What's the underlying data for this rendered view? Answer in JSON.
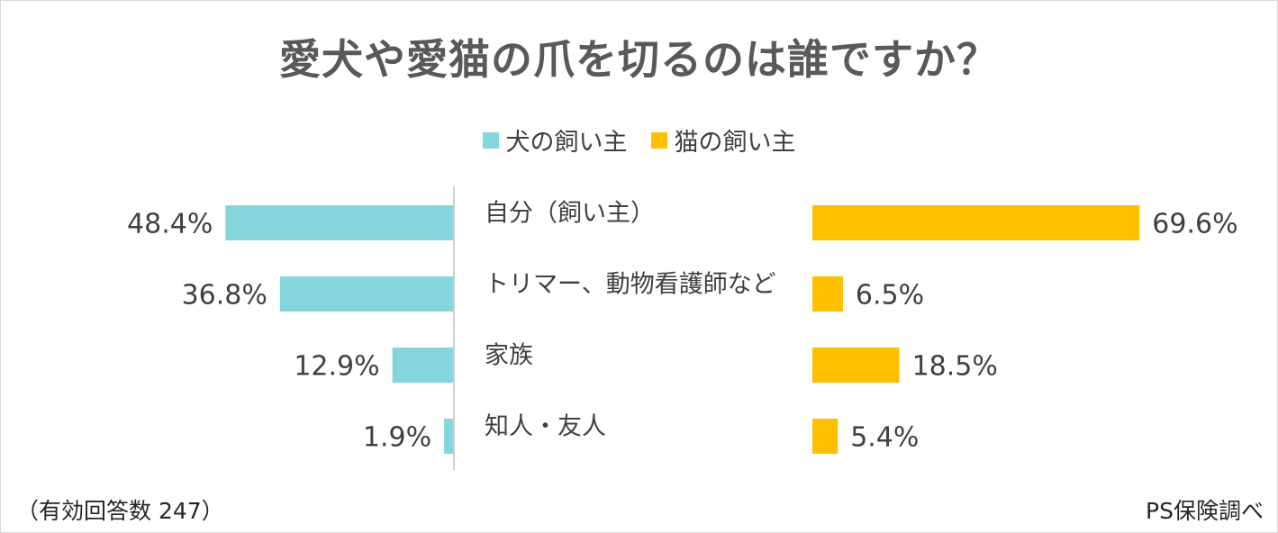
{
  "chart_data": {
    "type": "bar",
    "title": "愛犬や愛猫の爪を切るのは誰ですか？",
    "categories": [
      "自分（飼い主）",
      "トリマー、動物看護師など",
      "家族",
      "知人・友人"
    ],
    "series": [
      {
        "name": "犬の飼い主",
        "values": [
          48.4,
          36.8,
          12.9,
          1.9
        ],
        "color": "#84D6DC",
        "direction": "left"
      },
      {
        "name": "猫の飼い主",
        "values": [
          69.6,
          6.5,
          18.5,
          5.4
        ],
        "color": "#FFC000",
        "direction": "right"
      }
    ],
    "value_labels": {
      "dog": [
        "48.4%",
        "36.8%",
        "12.9%",
        "1.9%"
      ],
      "cat": [
        "69.6%",
        "6.5%",
        "18.5%",
        "5.4%"
      ]
    },
    "unit": "%",
    "legend_position": "top-center",
    "grid": false
  },
  "footer": {
    "note": "（有効回答数 247）",
    "source": "PS保険調べ"
  }
}
